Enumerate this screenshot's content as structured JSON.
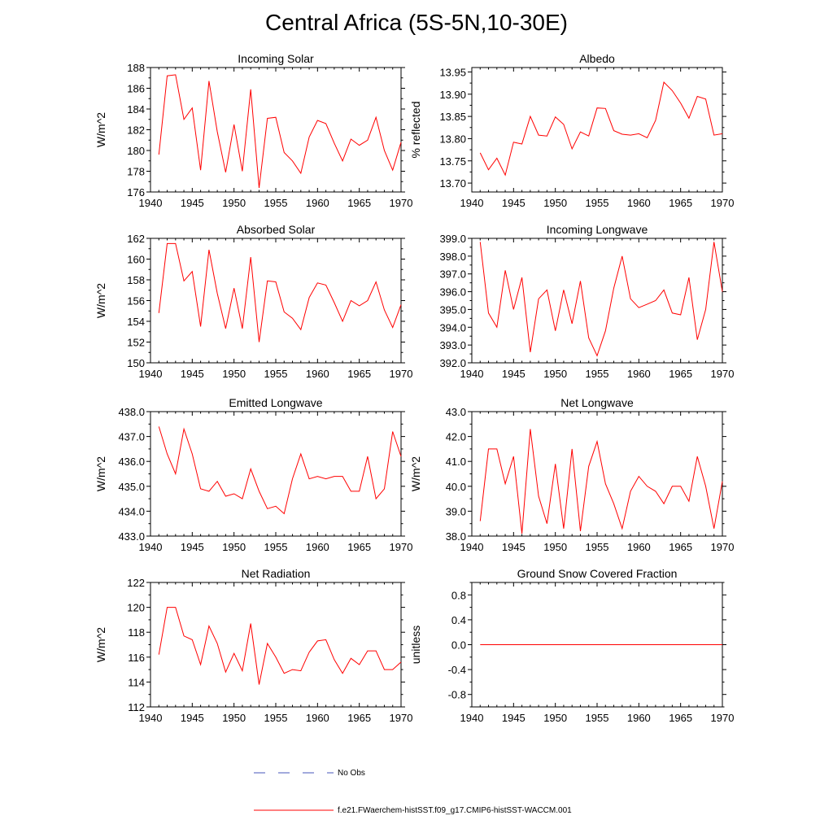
{
  "title": "Central Africa (5S-5N,10-30E)",
  "colors": {
    "series": "#ff0000",
    "obs": "#4455bb",
    "axes": "#000000"
  },
  "legend": {
    "obs_label": "No Obs",
    "model_label": "f.e21.FWaerchem-histSST.f09_g17.CMIP6-histSST-WACCM.001"
  },
  "chart_data": [
    {
      "type": "line",
      "title": "Incoming Solar",
      "ylabel": "W/m^2",
      "xlim": [
        1940,
        1970
      ],
      "ylim": [
        176,
        188
      ],
      "xticks": [
        1940,
        1945,
        1950,
        1955,
        1960,
        1965,
        1970
      ],
      "xtick_labels": [
        "1940",
        "1945",
        "1950",
        "1955",
        "1960",
        "1965",
        "1970"
      ],
      "yticks": [
        176,
        178,
        180,
        182,
        184,
        186,
        188
      ],
      "ytick_labels": [
        "176",
        "178",
        "180",
        "182",
        "184",
        "186",
        "188"
      ],
      "x": [
        1941,
        1942,
        1943,
        1944,
        1945,
        1946,
        1947,
        1948,
        1949,
        1950,
        1951,
        1952,
        1953,
        1954,
        1955,
        1956,
        1957,
        1958,
        1959,
        1960,
        1961,
        1962,
        1963,
        1964,
        1965,
        1966,
        1967,
        1968,
        1969,
        1970
      ],
      "series": [
        {
          "values": [
            179.6,
            187.2,
            187.3,
            183.0,
            184.1,
            178.1,
            186.7,
            181.8,
            177.9,
            182.5,
            178.0,
            185.9,
            176.4,
            183.1,
            183.2,
            179.8,
            179.0,
            177.8,
            181.3,
            182.9,
            182.6,
            180.7,
            179.0,
            181.1,
            180.5,
            181.0,
            183.2,
            180.0,
            178.1,
            180.8
          ]
        }
      ]
    },
    {
      "type": "line",
      "title": "Albedo",
      "ylabel": "% reflected",
      "xlim": [
        1940,
        1970
      ],
      "ylim": [
        13.68,
        13.96
      ],
      "xticks": [
        1940,
        1945,
        1950,
        1955,
        1960,
        1965,
        1970
      ],
      "xtick_labels": [
        "1940",
        "1945",
        "1950",
        "1955",
        "1960",
        "1965",
        "1970"
      ],
      "yticks": [
        13.7,
        13.75,
        13.8,
        13.85,
        13.9,
        13.95
      ],
      "ytick_labels": [
        "13.70",
        "13.75",
        "13.80",
        "13.85",
        "13.90",
        "13.95"
      ],
      "x": [
        1941,
        1942,
        1943,
        1944,
        1945,
        1946,
        1947,
        1948,
        1949,
        1950,
        1951,
        1952,
        1953,
        1954,
        1955,
        1956,
        1957,
        1958,
        1959,
        1960,
        1961,
        1962,
        1963,
        1964,
        1965,
        1966,
        1967,
        1968,
        1969,
        1970
      ],
      "series": [
        {
          "values": [
            13.768,
            13.73,
            13.756,
            13.718,
            13.792,
            13.788,
            13.85,
            13.808,
            13.806,
            13.849,
            13.832,
            13.777,
            13.815,
            13.806,
            13.869,
            13.868,
            13.818,
            13.81,
            13.808,
            13.811,
            13.802,
            13.841,
            13.927,
            13.908,
            13.88,
            13.846,
            13.895,
            13.889,
            13.808,
            13.811
          ]
        }
      ]
    },
    {
      "type": "line",
      "title": "Absorbed Solar",
      "ylabel": "W/m^2",
      "xlim": [
        1940,
        1970
      ],
      "ylim": [
        150,
        162
      ],
      "xticks": [
        1940,
        1945,
        1950,
        1955,
        1960,
        1965,
        1970
      ],
      "xtick_labels": [
        "1940",
        "1945",
        "1950",
        "1955",
        "1960",
        "1965",
        "1970"
      ],
      "yticks": [
        150,
        152,
        154,
        156,
        158,
        160,
        162
      ],
      "ytick_labels": [
        "150",
        "152",
        "154",
        "156",
        "158",
        "160",
        "162"
      ],
      "x": [
        1941,
        1942,
        1943,
        1944,
        1945,
        1946,
        1947,
        1948,
        1949,
        1950,
        1951,
        1952,
        1953,
        1954,
        1955,
        1956,
        1957,
        1958,
        1959,
        1960,
        1961,
        1962,
        1963,
        1964,
        1965,
        1966,
        1967,
        1968,
        1969,
        1970
      ],
      "series": [
        {
          "values": [
            154.8,
            161.5,
            161.5,
            157.9,
            158.8,
            153.5,
            160.9,
            156.7,
            153.3,
            157.2,
            153.3,
            160.2,
            152.0,
            157.9,
            157.8,
            154.9,
            154.3,
            153.2,
            156.3,
            157.7,
            157.5,
            155.8,
            154.0,
            156.0,
            155.5,
            156.0,
            157.8,
            155.1,
            153.4,
            155.6
          ]
        }
      ]
    },
    {
      "type": "line",
      "title": "Incoming Longwave",
      "ylabel": "",
      "xlim": [
        1940,
        1970
      ],
      "ylim": [
        392.0,
        399.0
      ],
      "xticks": [
        1940,
        1945,
        1950,
        1955,
        1960,
        1965,
        1970
      ],
      "xtick_labels": [
        "1940",
        "1945",
        "1950",
        "1955",
        "1960",
        "1965",
        "1970"
      ],
      "yticks": [
        392,
        393,
        394,
        395,
        396,
        397,
        398,
        399
      ],
      "ytick_labels": [
        "392.0",
        "393.0",
        "394.0",
        "395.0",
        "396.0",
        "397.0",
        "398.0",
        "399.0"
      ],
      "x": [
        1941,
        1942,
        1943,
        1944,
        1945,
        1946,
        1947,
        1948,
        1949,
        1950,
        1951,
        1952,
        1953,
        1954,
        1955,
        1956,
        1957,
        1958,
        1959,
        1960,
        1961,
        1962,
        1963,
        1964,
        1965,
        1966,
        1967,
        1968,
        1969,
        1970
      ],
      "series": [
        {
          "values": [
            398.8,
            394.8,
            394.0,
            397.2,
            395.0,
            396.8,
            392.6,
            395.6,
            396.1,
            393.8,
            396.1,
            394.2,
            396.6,
            393.4,
            392.4,
            393.8,
            396.2,
            398.0,
            395.6,
            395.1,
            395.3,
            395.5,
            396.1,
            394.8,
            394.7,
            396.8,
            393.3,
            395.0,
            398.8,
            396.0
          ]
        }
      ]
    },
    {
      "type": "line",
      "title": "Emitted Longwave",
      "ylabel": "W/m^2",
      "xlim": [
        1940,
        1970
      ],
      "ylim": [
        433.0,
        438.0
      ],
      "xticks": [
        1940,
        1945,
        1950,
        1955,
        1960,
        1965,
        1970
      ],
      "xtick_labels": [
        "1940",
        "1945",
        "1950",
        "1955",
        "1960",
        "1965",
        "1970"
      ],
      "yticks": [
        433,
        434,
        435,
        436,
        437,
        438
      ],
      "ytick_labels": [
        "433.0",
        "434.0",
        "435.0",
        "436.0",
        "437.0",
        "438.0"
      ],
      "x": [
        1941,
        1942,
        1943,
        1944,
        1945,
        1946,
        1947,
        1948,
        1949,
        1950,
        1951,
        1952,
        1953,
        1954,
        1955,
        1956,
        1957,
        1958,
        1959,
        1960,
        1961,
        1962,
        1963,
        1964,
        1965,
        1966,
        1967,
        1968,
        1969,
        1970
      ],
      "series": [
        {
          "values": [
            437.4,
            436.3,
            435.5,
            437.3,
            436.3,
            434.9,
            434.8,
            435.2,
            434.6,
            434.7,
            434.5,
            435.7,
            434.8,
            434.1,
            434.2,
            433.9,
            435.3,
            436.3,
            435.3,
            435.4,
            435.3,
            435.4,
            435.4,
            434.8,
            434.8,
            436.2,
            434.5,
            434.9,
            437.2,
            436.2
          ]
        }
      ]
    },
    {
      "type": "line",
      "title": "Net Longwave",
      "ylabel": "W/m^2",
      "xlim": [
        1940,
        1970
      ],
      "ylim": [
        38.0,
        43.0
      ],
      "xticks": [
        1940,
        1945,
        1950,
        1955,
        1960,
        1965,
        1970
      ],
      "xtick_labels": [
        "1940",
        "1945",
        "1950",
        "1955",
        "1960",
        "1965",
        "1970"
      ],
      "yticks": [
        38,
        39,
        40,
        41,
        42,
        43
      ],
      "ytick_labels": [
        "38.0",
        "39.0",
        "40.0",
        "41.0",
        "42.0",
        "43.0"
      ],
      "x": [
        1941,
        1942,
        1943,
        1944,
        1945,
        1946,
        1947,
        1948,
        1949,
        1950,
        1951,
        1952,
        1953,
        1954,
        1955,
        1956,
        1957,
        1958,
        1959,
        1960,
        1961,
        1962,
        1963,
        1964,
        1965,
        1966,
        1967,
        1968,
        1969,
        1970
      ],
      "series": [
        {
          "values": [
            38.6,
            41.5,
            41.5,
            40.1,
            41.2,
            38.1,
            42.3,
            39.6,
            38.5,
            40.9,
            38.3,
            41.5,
            38.2,
            40.8,
            41.8,
            40.1,
            39.3,
            38.3,
            39.8,
            40.4,
            40.0,
            39.8,
            39.3,
            40.0,
            40.0,
            39.4,
            41.2,
            40.0,
            38.3,
            40.2
          ]
        }
      ]
    },
    {
      "type": "line",
      "title": "Net Radiation",
      "ylabel": "W/m^2",
      "xlim": [
        1940,
        1970
      ],
      "ylim": [
        112,
        122
      ],
      "xticks": [
        1940,
        1945,
        1950,
        1955,
        1960,
        1965,
        1970
      ],
      "xtick_labels": [
        "1940",
        "1945",
        "1950",
        "1955",
        "1960",
        "1965",
        "1970"
      ],
      "yticks": [
        112,
        114,
        116,
        118,
        120,
        122
      ],
      "ytick_labels": [
        "112",
        "114",
        "116",
        "118",
        "120",
        "122"
      ],
      "x": [
        1941,
        1942,
        1943,
        1944,
        1945,
        1946,
        1947,
        1948,
        1949,
        1950,
        1951,
        1952,
        1953,
        1954,
        1955,
        1956,
        1957,
        1958,
        1959,
        1960,
        1961,
        1962,
        1963,
        1964,
        1965,
        1966,
        1967,
        1968,
        1969,
        1970
      ],
      "series": [
        {
          "values": [
            116.2,
            120.0,
            120.0,
            117.7,
            117.4,
            115.4,
            118.5,
            117.1,
            114.8,
            116.3,
            114.9,
            118.7,
            113.8,
            117.1,
            116.0,
            114.7,
            115.0,
            114.9,
            116.4,
            117.3,
            117.4,
            115.8,
            114.7,
            115.9,
            115.4,
            116.5,
            116.5,
            115.0,
            115.0,
            115.6
          ]
        }
      ]
    },
    {
      "type": "line",
      "title": "Ground Snow Covered Fraction",
      "ylabel": "unitless",
      "xlim": [
        1940,
        1970
      ],
      "ylim": [
        -1.0,
        1.0
      ],
      "xticks": [
        1940,
        1945,
        1950,
        1955,
        1960,
        1965,
        1970
      ],
      "xtick_labels": [
        "1940",
        "1945",
        "1950",
        "1955",
        "1960",
        "1965",
        "1970"
      ],
      "yticks": [
        -0.8,
        -0.4,
        0.0,
        0.4,
        0.8
      ],
      "ytick_labels": [
        "-0.8",
        "-0.4",
        "0.0",
        "0.4",
        "0.8"
      ],
      "x": [
        1941,
        1942,
        1943,
        1944,
        1945,
        1946,
        1947,
        1948,
        1949,
        1950,
        1951,
        1952,
        1953,
        1954,
        1955,
        1956,
        1957,
        1958,
        1959,
        1960,
        1961,
        1962,
        1963,
        1964,
        1965,
        1966,
        1967,
        1968,
        1969,
        1970
      ],
      "series": [
        {
          "values": [
            0,
            0,
            0,
            0,
            0,
            0,
            0,
            0,
            0,
            0,
            0,
            0,
            0,
            0,
            0,
            0,
            0,
            0,
            0,
            0,
            0,
            0,
            0,
            0,
            0,
            0,
            0,
            0,
            0,
            0
          ]
        }
      ]
    }
  ]
}
